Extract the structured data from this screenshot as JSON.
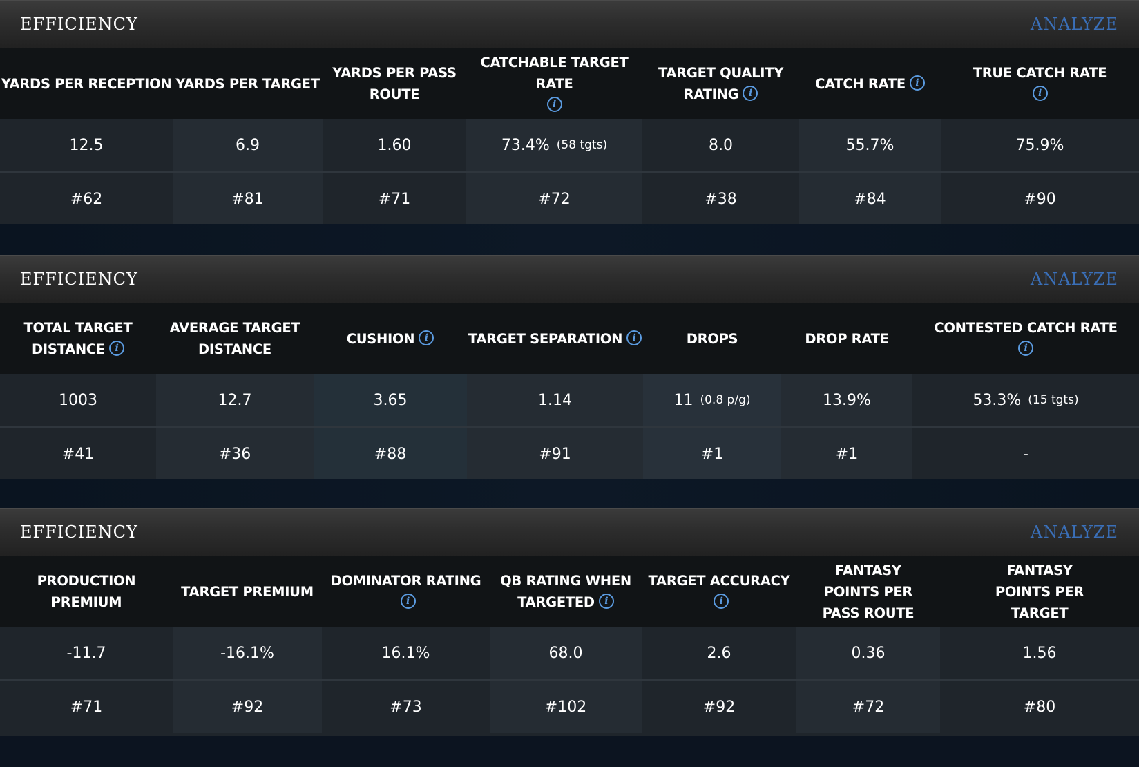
{
  "sections": [
    {
      "title": "EFFICIENCY",
      "analyze_label": "ANALYZE",
      "columns": [
        {
          "label": "YARDS PER RECEPTION",
          "info": false
        },
        {
          "label": "YARDS PER TARGET",
          "info": false
        },
        {
          "label": "YARDS PER PASS ROUTE",
          "info": false
        },
        {
          "label": "CATCHABLE TARGET RATE",
          "info": true
        },
        {
          "label": "TARGET QUALITY RATING",
          "info": true
        },
        {
          "label": "CATCH RATE",
          "info": true
        },
        {
          "label": "TRUE CATCH RATE",
          "info": true
        }
      ],
      "values": [
        {
          "value": "12.5",
          "sub": ""
        },
        {
          "value": "6.9",
          "sub": ""
        },
        {
          "value": "1.60",
          "sub": ""
        },
        {
          "value": "73.4%",
          "sub": "(58 tgts)"
        },
        {
          "value": "8.0",
          "sub": ""
        },
        {
          "value": "55.7%",
          "sub": ""
        },
        {
          "value": "75.9%",
          "sub": ""
        }
      ],
      "ranks": [
        "#62",
        "#81",
        "#71",
        "#72",
        "#38",
        "#84",
        "#90"
      ]
    },
    {
      "title": "EFFICIENCY",
      "analyze_label": "ANALYZE",
      "columns": [
        {
          "label": "TOTAL TARGET DISTANCE",
          "info": true
        },
        {
          "label": "AVERAGE TARGET DISTANCE",
          "info": false
        },
        {
          "label": "CUSHION",
          "info": true
        },
        {
          "label": "TARGET SEPARATION",
          "info": true
        },
        {
          "label": "DROPS",
          "info": false
        },
        {
          "label": "DROP RATE",
          "info": false
        },
        {
          "label": "CONTESTED CATCH RATE",
          "info": true
        }
      ],
      "values": [
        {
          "value": "1003",
          "sub": ""
        },
        {
          "value": "12.7",
          "sub": ""
        },
        {
          "value": "3.65",
          "sub": ""
        },
        {
          "value": "1.14",
          "sub": ""
        },
        {
          "value": "11",
          "sub": "(0.8 p/g)"
        },
        {
          "value": "13.9%",
          "sub": ""
        },
        {
          "value": "53.3%",
          "sub": "(15 tgts)"
        }
      ],
      "ranks": [
        "#41",
        "#36",
        "#88",
        "#91",
        "#1",
        "#1",
        "-"
      ]
    },
    {
      "title": "EFFICIENCY",
      "analyze_label": "ANALYZE",
      "columns": [
        {
          "label": "PRODUCTION PREMIUM",
          "info": false
        },
        {
          "label": "TARGET PREMIUM",
          "info": false
        },
        {
          "label": "DOMINATOR RATING",
          "info": true
        },
        {
          "label": "QB RATING WHEN TARGETED",
          "info": true
        },
        {
          "label": "TARGET ACCURACY",
          "info": true
        },
        {
          "label": "FANTASY POINTS PER PASS ROUTE",
          "info": false
        },
        {
          "label": "FANTASY POINTS PER TARGET",
          "info": false
        }
      ],
      "values": [
        {
          "value": "-11.7",
          "sub": ""
        },
        {
          "value": "-16.1%",
          "sub": ""
        },
        {
          "value": "16.1%",
          "sub": ""
        },
        {
          "value": "68.0",
          "sub": ""
        },
        {
          "value": "2.6",
          "sub": ""
        },
        {
          "value": "0.36",
          "sub": ""
        },
        {
          "value": "1.56",
          "sub": ""
        }
      ],
      "ranks": [
        "#71",
        "#92",
        "#73",
        "#102",
        "#92",
        "#72",
        "#80"
      ]
    }
  ],
  "info_icon_glyph": "i",
  "colors": {
    "accent": "#3a6fb8",
    "info_icon": "#5b9be0",
    "page_bg": "#0c1420"
  }
}
